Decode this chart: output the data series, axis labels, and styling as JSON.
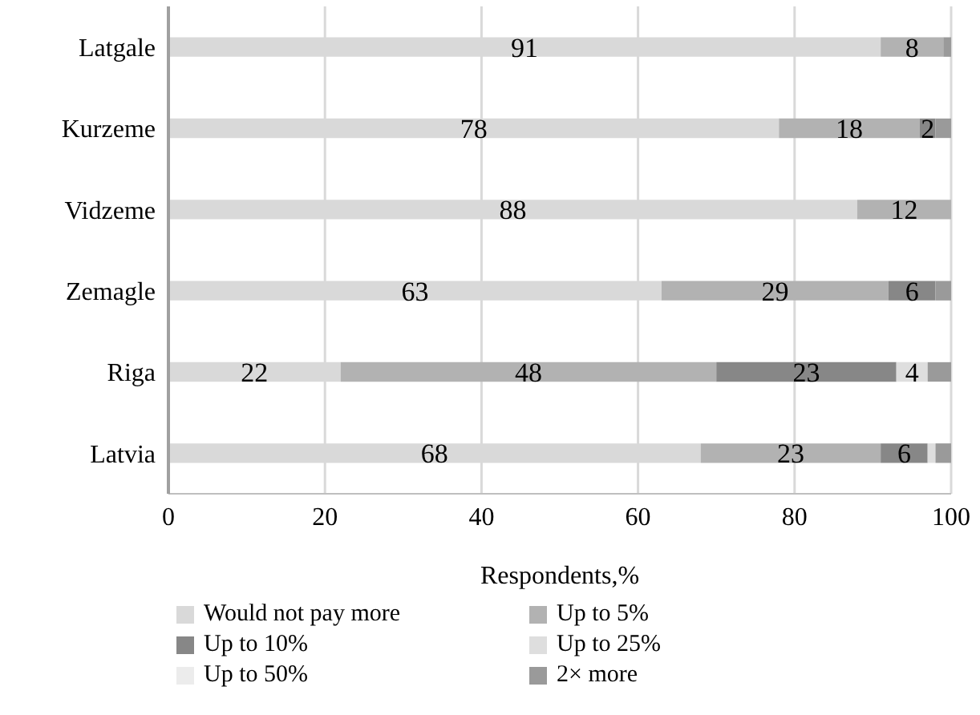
{
  "chart_data": {
    "type": "bar",
    "orientation": "horizontal",
    "stacked": true,
    "xlabel": "Respondents,%",
    "categories": [
      "Latgale",
      "Kurzeme",
      "Vidzeme",
      "Zemagle",
      "Riga",
      "Latvia"
    ],
    "series": [
      {
        "name": "Would not pay more",
        "color": "#d9d9d9",
        "values": [
          91,
          78,
          88,
          63,
          22,
          68
        ],
        "value_labels": [
          "91",
          "78",
          "88",
          "63",
          "22",
          "68"
        ]
      },
      {
        "name": "Up to 5%",
        "color": "#b2b2b2",
        "values": [
          8,
          18,
          12,
          29,
          48,
          23
        ],
        "value_labels": [
          "8",
          "18",
          "12",
          "29",
          "48",
          "23"
        ]
      },
      {
        "name": "Up to 10%",
        "color": "#878787",
        "values": [
          0,
          2,
          0,
          6,
          23,
          6
        ],
        "value_labels": [
          null,
          "2",
          null,
          "6",
          "23",
          "6"
        ]
      },
      {
        "name": "Up to 25%",
        "color": "#dedede",
        "values": [
          0,
          0,
          0,
          0,
          4,
          1
        ],
        "value_labels": [
          null,
          null,
          null,
          null,
          "4",
          null
        ]
      },
      {
        "name": "Up to 50%",
        "color": "#ececec",
        "values": [
          0,
          0,
          0,
          0,
          0,
          0
        ]
      },
      {
        "name": "2× more",
        "color": "#9a9a9a",
        "values": [
          1,
          2,
          0,
          2,
          3,
          2
        ]
      }
    ],
    "xlim": [
      0,
      100
    ],
    "xticks": [
      0,
      20,
      40,
      60,
      80,
      100
    ],
    "grid": "x",
    "legend": "bottom"
  }
}
